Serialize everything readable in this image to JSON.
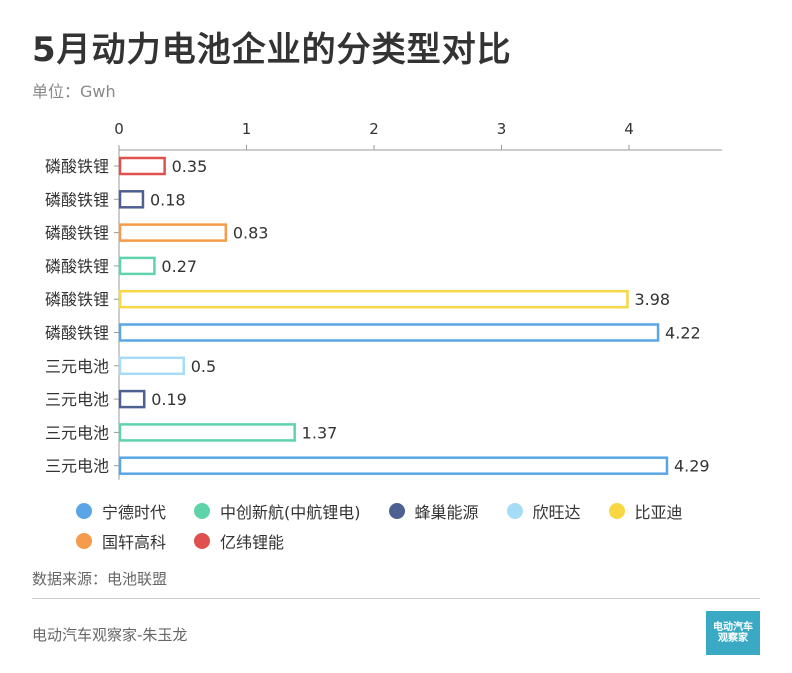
{
  "header": {
    "title": "5月动力电池企业的分类型对比",
    "unit": "单位：Gwh"
  },
  "chart_data": {
    "type": "bar",
    "orientation": "horizontal",
    "categories": [
      "磷酸铁锂",
      "磷酸铁锂",
      "磷酸铁锂",
      "磷酸铁锂",
      "磷酸铁锂",
      "磷酸铁锂",
      "三元电池",
      "三元电池",
      "三元电池",
      "三元电池"
    ],
    "values": [
      0.35,
      0.18,
      0.83,
      0.27,
      3.98,
      4.22,
      0.5,
      0.19,
      1.37,
      4.29
    ],
    "value_labels": [
      "0.35",
      "0.18",
      "0.83",
      "0.27",
      "3.98",
      "4.22",
      "0.5",
      "0.19",
      "1.37",
      "4.29"
    ],
    "bar_companies": [
      "亿纬锂能",
      "蜂巢能源",
      "国轩高科",
      "中创新航(中航锂电)",
      "比亚迪",
      "宁德时代",
      "欣旺达",
      "蜂巢能源",
      "中创新航(中航锂电)",
      "宁德时代"
    ],
    "xlim": [
      0,
      4.7
    ],
    "x_ticks": [
      "0",
      "1",
      "2",
      "3",
      "4"
    ],
    "grid": false,
    "legend_position": "bottom",
    "series": [
      {
        "name": "宁德时代",
        "color": "#5aa5e6"
      },
      {
        "name": "中创新航(中航锂电)",
        "color": "#5fd3aa"
      },
      {
        "name": "蜂巢能源",
        "color": "#4e5f91"
      },
      {
        "name": "欣旺达",
        "color": "#a6dcf5"
      },
      {
        "name": "比亚迪",
        "color": "#f7d743"
      },
      {
        "name": "国轩高科",
        "color": "#f59b4b"
      },
      {
        "name": "亿纬锂能",
        "color": "#e0504e"
      }
    ]
  },
  "footer": {
    "source": "数据来源：电池联盟",
    "author": "电动汽车观察家-朱玉龙",
    "logo_line1": "电动汽车",
    "logo_line2": "观察家"
  }
}
